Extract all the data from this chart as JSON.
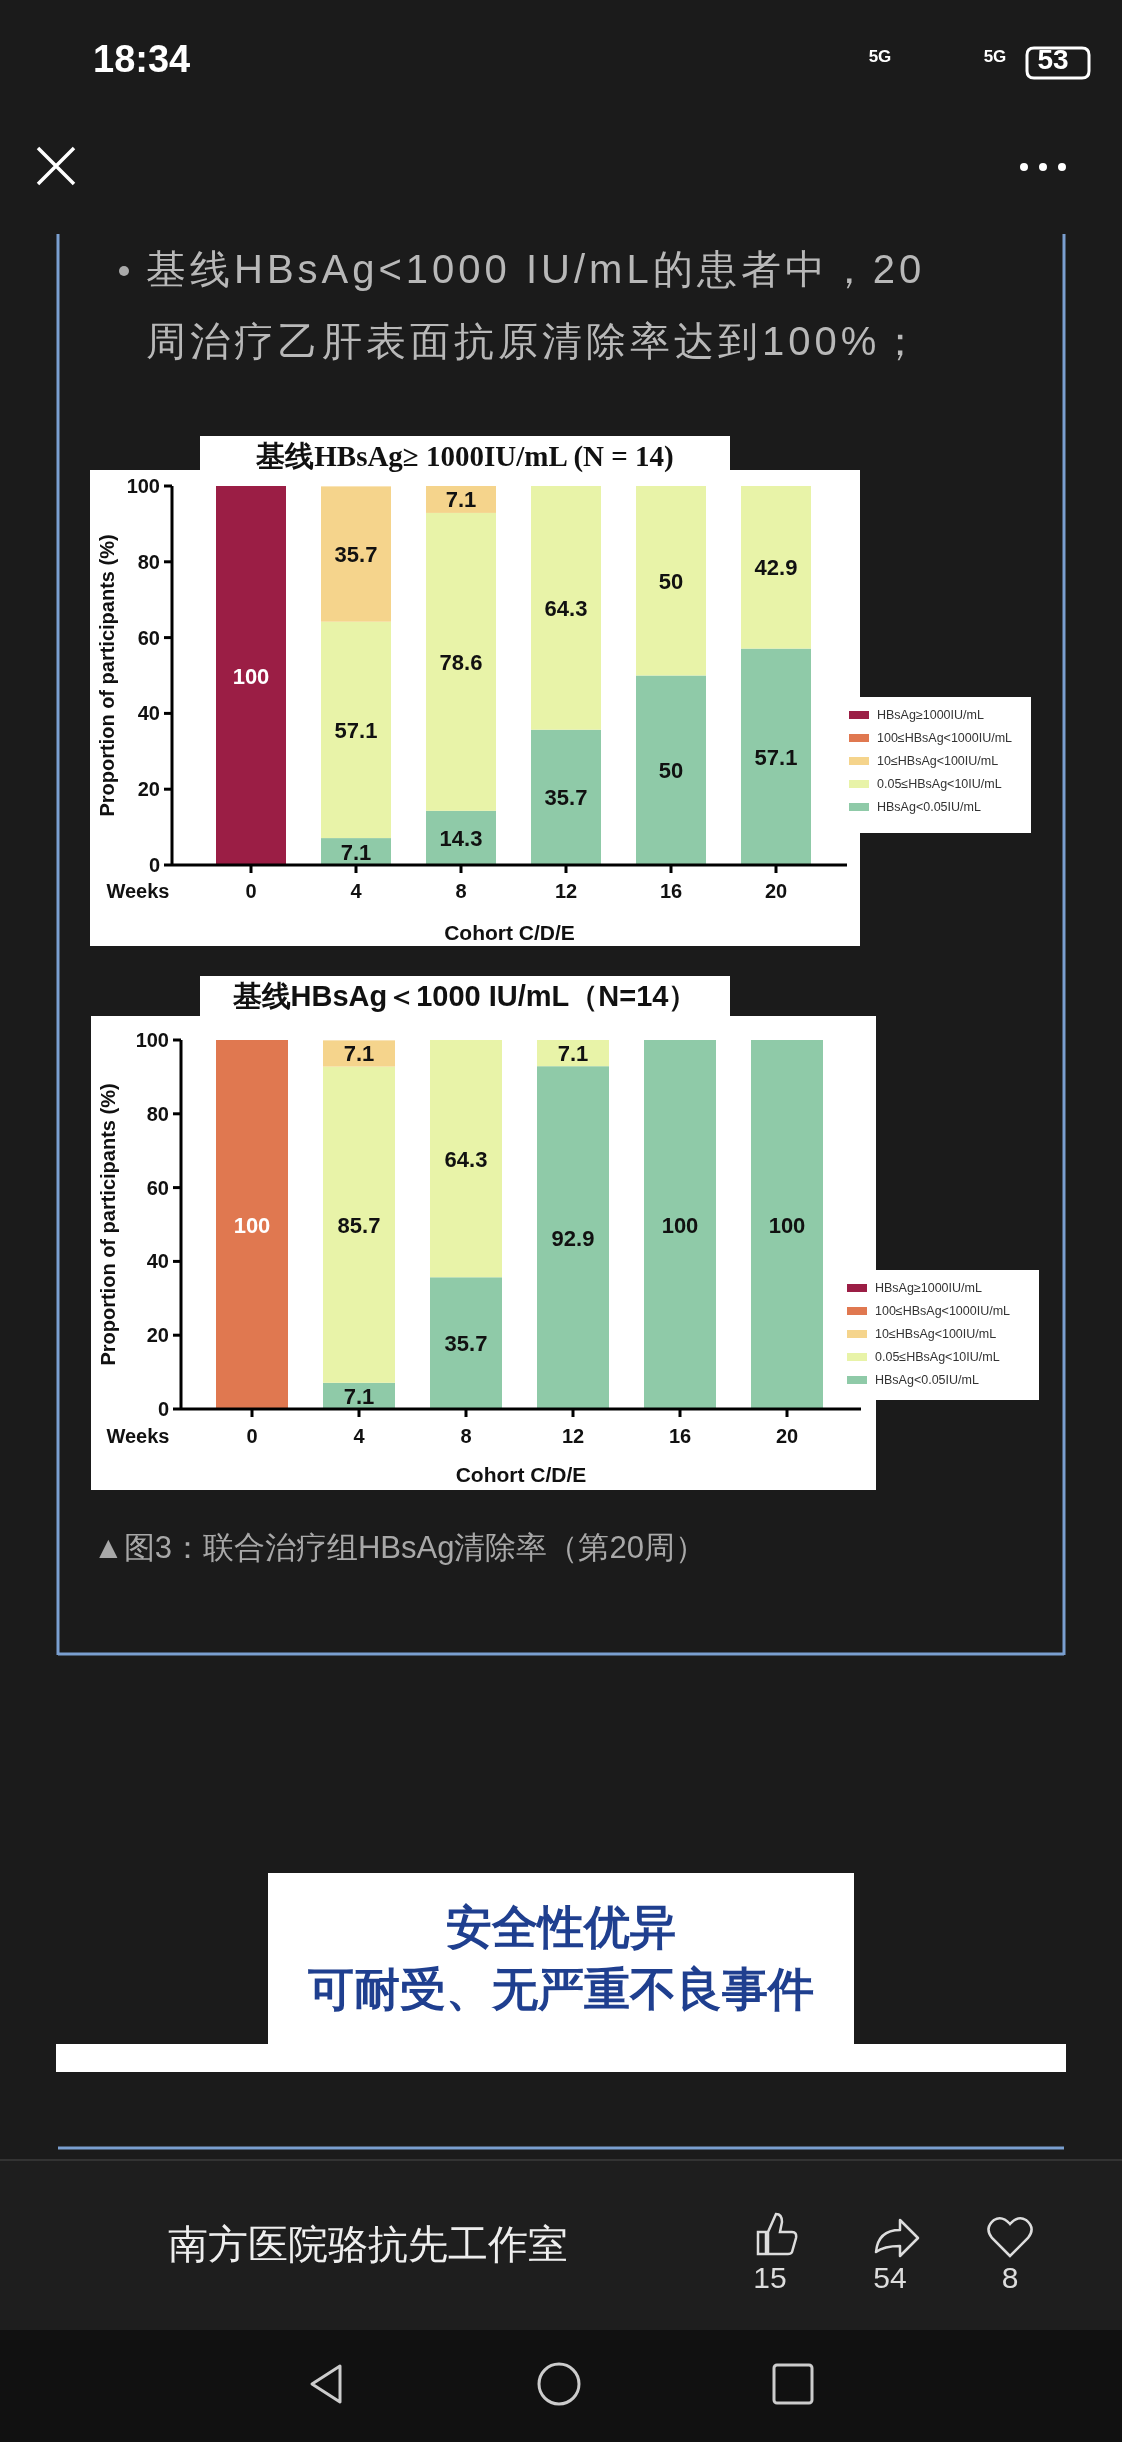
{
  "chart_data": [
    {
      "type": "bar",
      "stacked": true,
      "title": "基线HBsAg≥ 1000IU/mL (N = 14)",
      "xlabel": "Cohort C/D/E",
      "ylabel": "Proportion of participants (%)",
      "categories": [
        "0",
        "4",
        "8",
        "12",
        "16",
        "20"
      ],
      "ylim": [
        0,
        100
      ],
      "yticks": [
        0,
        20,
        40,
        60,
        80,
        100
      ],
      "legend": "right",
      "annotations": [
        "Weeks",
        "基线HBsAg<1000 IU/mL的患者中，20周治疗乙肝表面抗原清除率达到100%；"
      ],
      "series": [
        {
          "name": "HBsAg<0.05IU/mL",
          "color": "#8fcaa8",
          "values": [
            0,
            7.1,
            14.3,
            35.7,
            50,
            57.1
          ],
          "value_labels": [
            null,
            "7.1",
            "14.3",
            "35.7",
            "50",
            "57.1"
          ]
        },
        {
          "name": "0.05≤HBsAg<10IU/mL",
          "color": "#e8f3a8",
          "values": [
            0,
            57.1,
            78.6,
            64.3,
            50,
            42.9
          ],
          "value_labels": [
            null,
            "57.1",
            "78.6",
            "64.3",
            "50",
            "42.9"
          ]
        },
        {
          "name": "10≤HBsAg<100IU/mL",
          "color": "#f5d48c",
          "values": [
            0,
            35.7,
            7.1,
            0,
            0,
            0
          ],
          "value_labels": [
            null,
            "35.7",
            "7.1",
            null,
            null,
            null
          ]
        },
        {
          "name": "100≤HBsAg<1000IU/mL",
          "color": "#e07850",
          "values": [
            0,
            0,
            0,
            0,
            0,
            0
          ],
          "value_labels": [
            null,
            null,
            null,
            null,
            null,
            null
          ]
        },
        {
          "name": "HBsAg≥1000IU/mL",
          "color": "#9b1e45",
          "values": [
            100,
            0,
            0,
            0,
            0,
            0
          ],
          "value_labels": [
            "100",
            null,
            null,
            null,
            null,
            null
          ]
        }
      ]
    },
    {
      "type": "bar",
      "stacked": true,
      "title": "基线HBsAg＜1000 IU/mL（N=14）",
      "xlabel": "Cohort C/D/E",
      "ylabel": "Proportion of participants (%)",
      "categories": [
        "0",
        "4",
        "8",
        "12",
        "16",
        "20"
      ],
      "ylim": [
        0,
        100
      ],
      "yticks": [
        0,
        20,
        40,
        60,
        80,
        100
      ],
      "legend": "right",
      "annotations": [
        "Weeks",
        "▲图3：联合治疗组HBsAg清除率（第20周）"
      ],
      "series": [
        {
          "name": "HBsAg<0.05IU/mL",
          "color": "#8fcaa8",
          "values": [
            0,
            7.1,
            35.7,
            92.9,
            100,
            100
          ],
          "value_labels": [
            null,
            "7.1",
            "35.7",
            "92.9",
            "100",
            "100"
          ]
        },
        {
          "name": "0.05≤HBsAg<10IU/mL",
          "color": "#e8f3a8",
          "values": [
            0,
            85.7,
            64.3,
            7.1,
            0,
            0
          ],
          "value_labels": [
            null,
            "85.7",
            "64.3",
            "7.1",
            null,
            null
          ]
        },
        {
          "name": "10≤HBsAg<100IU/mL",
          "color": "#f5d48c",
          "values": [
            0,
            7.1,
            0,
            0,
            0,
            0
          ],
          "value_labels": [
            null,
            "7.1",
            null,
            null,
            null,
            null
          ]
        },
        {
          "name": "100≤HBsAg<1000IU/mL",
          "color": "#e07850",
          "values": [
            100,
            0,
            0,
            0,
            0,
            0
          ],
          "value_labels": [
            "100",
            null,
            null,
            null,
            null,
            null
          ]
        },
        {
          "name": "HBsAg≥1000IU/mL",
          "color": "#9b1e45",
          "values": [
            0,
            0,
            0,
            0,
            0,
            0
          ],
          "value_labels": [
            null,
            null,
            null,
            null,
            null,
            null
          ]
        }
      ]
    },
    {
      "type": "other",
      "annotations": [
        "安全性优异",
        "可耐受、无严重不良事件"
      ]
    },
    {
      "type": "other",
      "annotations": [
        "18:34",
        "5G",
        "5G",
        "53",
        "南方医院骆抗先工作室",
        "15",
        "54",
        "8"
      ]
    }
  ]
}
